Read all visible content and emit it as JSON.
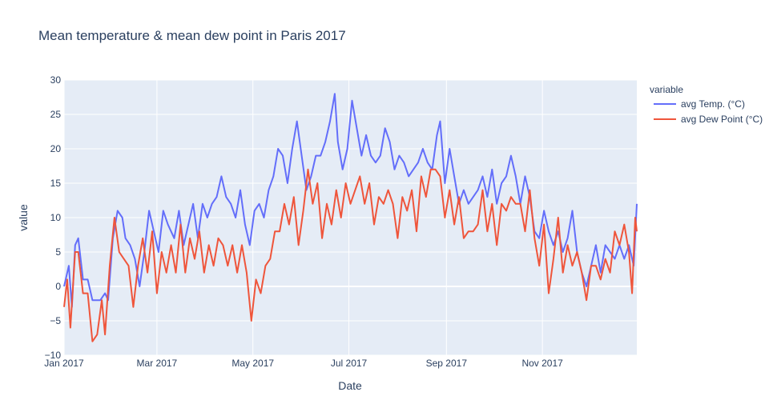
{
  "chart_data": {
    "type": "line",
    "title": "Mean temperature & mean dew point in Paris 2017",
    "xlabel": "Date",
    "ylabel": "value",
    "legend_title": "variable",
    "legend_placement": "top-right",
    "ylim": [
      -10,
      30
    ],
    "xlim": [
      "2017-01-01",
      "2017-12-31"
    ],
    "yticks": [
      -10,
      -5,
      0,
      5,
      10,
      15,
      20,
      25,
      30
    ],
    "xticks": [
      {
        "date": "2017-01-01",
        "label": "Jan 2017"
      },
      {
        "date": "2017-03-01",
        "label": "Mar 2017"
      },
      {
        "date": "2017-05-01",
        "label": "May 2017"
      },
      {
        "date": "2017-07-01",
        "label": "Jul 2017"
      },
      {
        "date": "2017-09-01",
        "label": "Sep 2017"
      },
      {
        "date": "2017-11-01",
        "label": "Nov 2017"
      }
    ],
    "grid": true,
    "series": [
      {
        "name": "avg Temp. (°C)",
        "color": "#636efa",
        "points": [
          [
            "2017-01-01",
            0
          ],
          [
            "2017-01-04",
            3
          ],
          [
            "2017-01-06",
            -3
          ],
          [
            "2017-01-08",
            6
          ],
          [
            "2017-01-10",
            7
          ],
          [
            "2017-01-13",
            1
          ],
          [
            "2017-01-16",
            1
          ],
          [
            "2017-01-19",
            -2
          ],
          [
            "2017-01-24",
            -2
          ],
          [
            "2017-01-27",
            -1
          ],
          [
            "2017-01-29",
            -2
          ],
          [
            "2017-02-01",
            7
          ],
          [
            "2017-02-04",
            11
          ],
          [
            "2017-02-07",
            10
          ],
          [
            "2017-02-09",
            7
          ],
          [
            "2017-02-12",
            6
          ],
          [
            "2017-02-15",
            4
          ],
          [
            "2017-02-18",
            0
          ],
          [
            "2017-02-21",
            5
          ],
          [
            "2017-02-24",
            11
          ],
          [
            "2017-02-27",
            8
          ],
          [
            "2017-03-02",
            5
          ],
          [
            "2017-03-05",
            11
          ],
          [
            "2017-03-08",
            9
          ],
          [
            "2017-03-12",
            7
          ],
          [
            "2017-03-15",
            11
          ],
          [
            "2017-03-18",
            6
          ],
          [
            "2017-03-21",
            9
          ],
          [
            "2017-03-24",
            12
          ],
          [
            "2017-03-27",
            7
          ],
          [
            "2017-03-30",
            12
          ],
          [
            "2017-04-02",
            10
          ],
          [
            "2017-04-05",
            12
          ],
          [
            "2017-04-08",
            13
          ],
          [
            "2017-04-11",
            16
          ],
          [
            "2017-04-14",
            13
          ],
          [
            "2017-04-17",
            12
          ],
          [
            "2017-04-20",
            10
          ],
          [
            "2017-04-23",
            14
          ],
          [
            "2017-04-26",
            9
          ],
          [
            "2017-04-29",
            6
          ],
          [
            "2017-05-02",
            11
          ],
          [
            "2017-05-05",
            12
          ],
          [
            "2017-05-08",
            10
          ],
          [
            "2017-05-11",
            14
          ],
          [
            "2017-05-14",
            16
          ],
          [
            "2017-05-17",
            20
          ],
          [
            "2017-05-20",
            19
          ],
          [
            "2017-05-23",
            15
          ],
          [
            "2017-05-26",
            20
          ],
          [
            "2017-05-29",
            24
          ],
          [
            "2017-06-01",
            19
          ],
          [
            "2017-06-04",
            14
          ],
          [
            "2017-06-07",
            16
          ],
          [
            "2017-06-10",
            19
          ],
          [
            "2017-06-13",
            19
          ],
          [
            "2017-06-16",
            21
          ],
          [
            "2017-06-19",
            24
          ],
          [
            "2017-06-22",
            28
          ],
          [
            "2017-06-24",
            21
          ],
          [
            "2017-06-27",
            17
          ],
          [
            "2017-06-30",
            20
          ],
          [
            "2017-07-03",
            27
          ],
          [
            "2017-07-06",
            23
          ],
          [
            "2017-07-09",
            19
          ],
          [
            "2017-07-12",
            22
          ],
          [
            "2017-07-15",
            19
          ],
          [
            "2017-07-18",
            18
          ],
          [
            "2017-07-21",
            19
          ],
          [
            "2017-07-24",
            23
          ],
          [
            "2017-07-27",
            21
          ],
          [
            "2017-07-30",
            17
          ],
          [
            "2017-08-02",
            19
          ],
          [
            "2017-08-05",
            18
          ],
          [
            "2017-08-08",
            16
          ],
          [
            "2017-08-11",
            17
          ],
          [
            "2017-08-14",
            18
          ],
          [
            "2017-08-17",
            20
          ],
          [
            "2017-08-20",
            18
          ],
          [
            "2017-08-23",
            17
          ],
          [
            "2017-08-26",
            22
          ],
          [
            "2017-08-28",
            24
          ],
          [
            "2017-08-31",
            15
          ],
          [
            "2017-09-03",
            20
          ],
          [
            "2017-09-06",
            16
          ],
          [
            "2017-09-09",
            12
          ],
          [
            "2017-09-12",
            14
          ],
          [
            "2017-09-15",
            12
          ],
          [
            "2017-09-18",
            13
          ],
          [
            "2017-09-21",
            14
          ],
          [
            "2017-09-24",
            16
          ],
          [
            "2017-09-27",
            13
          ],
          [
            "2017-09-30",
            17
          ],
          [
            "2017-10-03",
            12
          ],
          [
            "2017-10-06",
            15
          ],
          [
            "2017-10-09",
            16
          ],
          [
            "2017-10-12",
            19
          ],
          [
            "2017-10-15",
            16
          ],
          [
            "2017-10-18",
            12
          ],
          [
            "2017-10-21",
            16
          ],
          [
            "2017-10-24",
            13
          ],
          [
            "2017-10-27",
            8
          ],
          [
            "2017-10-30",
            7
          ],
          [
            "2017-11-02",
            11
          ],
          [
            "2017-11-05",
            8
          ],
          [
            "2017-11-08",
            6
          ],
          [
            "2017-11-11",
            8
          ],
          [
            "2017-11-14",
            5
          ],
          [
            "2017-11-17",
            7
          ],
          [
            "2017-11-20",
            11
          ],
          [
            "2017-11-23",
            5
          ],
          [
            "2017-11-26",
            2
          ],
          [
            "2017-11-29",
            0
          ],
          [
            "2017-12-02",
            3
          ],
          [
            "2017-12-05",
            6
          ],
          [
            "2017-12-08",
            2
          ],
          [
            "2017-12-11",
            6
          ],
          [
            "2017-12-14",
            5
          ],
          [
            "2017-12-17",
            4
          ],
          [
            "2017-12-20",
            6
          ],
          [
            "2017-12-23",
            4
          ],
          [
            "2017-12-26",
            6
          ],
          [
            "2017-12-29",
            3
          ],
          [
            "2017-12-31",
            12
          ]
        ]
      },
      {
        "name": "avg Dew Point (°C)",
        "color": "#ef553b",
        "points": [
          [
            "2017-01-01",
            -3
          ],
          [
            "2017-01-03",
            1
          ],
          [
            "2017-01-05",
            -6
          ],
          [
            "2017-01-08",
            5
          ],
          [
            "2017-01-10",
            5
          ],
          [
            "2017-01-13",
            -1
          ],
          [
            "2017-01-16",
            -1
          ],
          [
            "2017-01-19",
            -8
          ],
          [
            "2017-01-22",
            -7
          ],
          [
            "2017-01-25",
            -2
          ],
          [
            "2017-01-27",
            -7
          ],
          [
            "2017-01-30",
            3
          ],
          [
            "2017-02-02",
            10
          ],
          [
            "2017-02-05",
            5
          ],
          [
            "2017-02-08",
            4
          ],
          [
            "2017-02-11",
            3
          ],
          [
            "2017-02-14",
            -3
          ],
          [
            "2017-02-17",
            3
          ],
          [
            "2017-02-20",
            7
          ],
          [
            "2017-02-23",
            2
          ],
          [
            "2017-02-26",
            8
          ],
          [
            "2017-03-01",
            -1
          ],
          [
            "2017-03-04",
            5
          ],
          [
            "2017-03-07",
            2
          ],
          [
            "2017-03-10",
            6
          ],
          [
            "2017-03-13",
            2
          ],
          [
            "2017-03-16",
            9
          ],
          [
            "2017-03-19",
            2
          ],
          [
            "2017-03-22",
            7
          ],
          [
            "2017-03-25",
            4
          ],
          [
            "2017-03-28",
            8
          ],
          [
            "2017-03-31",
            2
          ],
          [
            "2017-04-03",
            6
          ],
          [
            "2017-04-06",
            3
          ],
          [
            "2017-04-09",
            7
          ],
          [
            "2017-04-12",
            6
          ],
          [
            "2017-04-15",
            3
          ],
          [
            "2017-04-18",
            6
          ],
          [
            "2017-04-21",
            2
          ],
          [
            "2017-04-24",
            6
          ],
          [
            "2017-04-27",
            2
          ],
          [
            "2017-04-30",
            -5
          ],
          [
            "2017-05-03",
            1
          ],
          [
            "2017-05-06",
            -1
          ],
          [
            "2017-05-09",
            3
          ],
          [
            "2017-05-12",
            4
          ],
          [
            "2017-05-15",
            8
          ],
          [
            "2017-05-18",
            8
          ],
          [
            "2017-05-21",
            12
          ],
          [
            "2017-05-24",
            9
          ],
          [
            "2017-05-27",
            13
          ],
          [
            "2017-05-30",
            6
          ],
          [
            "2017-06-02",
            11
          ],
          [
            "2017-06-05",
            17
          ],
          [
            "2017-06-08",
            12
          ],
          [
            "2017-06-11",
            15
          ],
          [
            "2017-06-14",
            7
          ],
          [
            "2017-06-17",
            12
          ],
          [
            "2017-06-20",
            9
          ],
          [
            "2017-06-23",
            14
          ],
          [
            "2017-06-26",
            10
          ],
          [
            "2017-06-29",
            15
          ],
          [
            "2017-07-02",
            12
          ],
          [
            "2017-07-05",
            14
          ],
          [
            "2017-07-08",
            16
          ],
          [
            "2017-07-11",
            12
          ],
          [
            "2017-07-14",
            15
          ],
          [
            "2017-07-17",
            9
          ],
          [
            "2017-07-20",
            13
          ],
          [
            "2017-07-23",
            12
          ],
          [
            "2017-07-26",
            14
          ],
          [
            "2017-07-29",
            12
          ],
          [
            "2017-08-01",
            7
          ],
          [
            "2017-08-04",
            13
          ],
          [
            "2017-08-07",
            11
          ],
          [
            "2017-08-10",
            14
          ],
          [
            "2017-08-13",
            8
          ],
          [
            "2017-08-16",
            16
          ],
          [
            "2017-08-19",
            13
          ],
          [
            "2017-08-22",
            17
          ],
          [
            "2017-08-25",
            17
          ],
          [
            "2017-08-28",
            16
          ],
          [
            "2017-08-31",
            10
          ],
          [
            "2017-09-03",
            14
          ],
          [
            "2017-09-06",
            9
          ],
          [
            "2017-09-09",
            13
          ],
          [
            "2017-09-12",
            7
          ],
          [
            "2017-09-15",
            8
          ],
          [
            "2017-09-18",
            8
          ],
          [
            "2017-09-21",
            9
          ],
          [
            "2017-09-24",
            14
          ],
          [
            "2017-09-27",
            8
          ],
          [
            "2017-09-30",
            12
          ],
          [
            "2017-10-03",
            6
          ],
          [
            "2017-10-06",
            12
          ],
          [
            "2017-10-09",
            11
          ],
          [
            "2017-10-12",
            13
          ],
          [
            "2017-10-15",
            12
          ],
          [
            "2017-10-18",
            12
          ],
          [
            "2017-10-21",
            8
          ],
          [
            "2017-10-24",
            14
          ],
          [
            "2017-10-27",
            7
          ],
          [
            "2017-10-30",
            3
          ],
          [
            "2017-11-02",
            9
          ],
          [
            "2017-11-05",
            -1
          ],
          [
            "2017-11-08",
            4
          ],
          [
            "2017-11-11",
            10
          ],
          [
            "2017-11-14",
            2
          ],
          [
            "2017-11-17",
            6
          ],
          [
            "2017-11-20",
            3
          ],
          [
            "2017-11-23",
            5
          ],
          [
            "2017-11-26",
            2
          ],
          [
            "2017-11-29",
            -2
          ],
          [
            "2017-12-02",
            3
          ],
          [
            "2017-12-05",
            3
          ],
          [
            "2017-12-08",
            1
          ],
          [
            "2017-12-11",
            4
          ],
          [
            "2017-12-14",
            2
          ],
          [
            "2017-12-17",
            8
          ],
          [
            "2017-12-20",
            6
          ],
          [
            "2017-12-23",
            9
          ],
          [
            "2017-12-26",
            5
          ],
          [
            "2017-12-28",
            -1
          ],
          [
            "2017-12-30",
            10
          ],
          [
            "2017-12-31",
            8
          ]
        ]
      }
    ]
  }
}
